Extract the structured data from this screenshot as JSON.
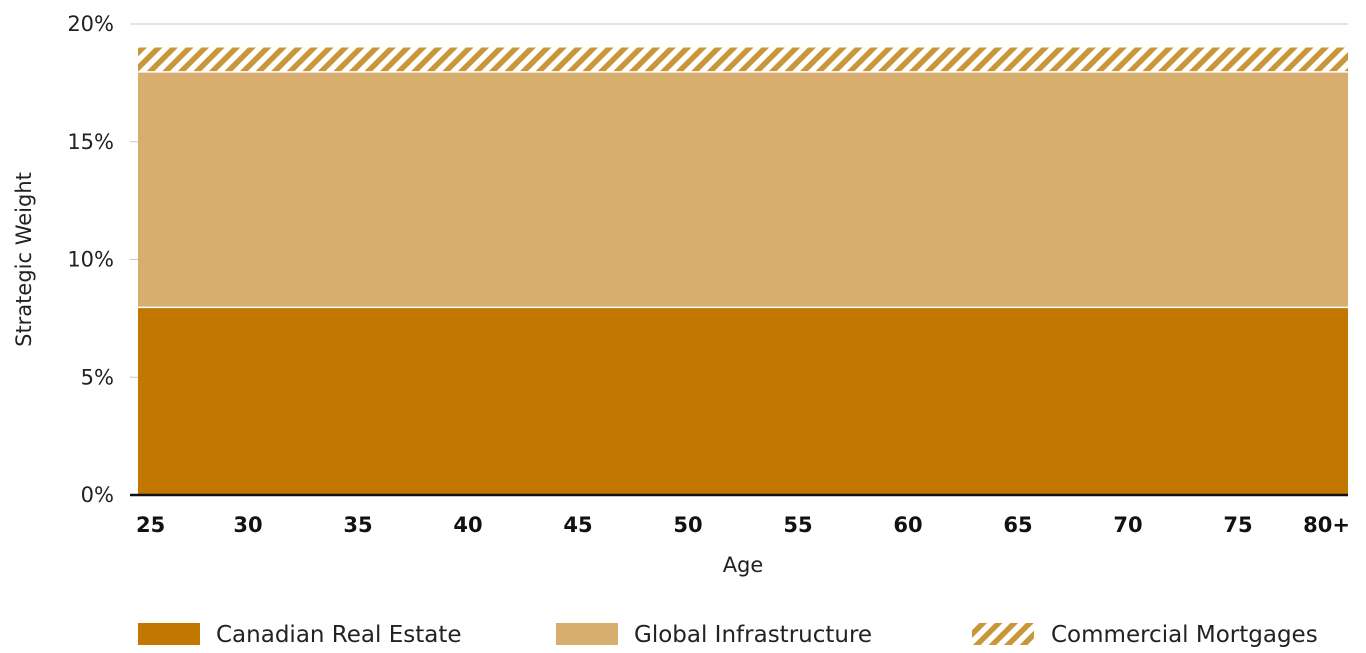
{
  "chart_data": {
    "type": "area",
    "stacked": true,
    "xlabel": "Age",
    "ylabel": "Strategic Weight",
    "x_tick_labels": [
      "25",
      "30",
      "35",
      "40",
      "45",
      "50",
      "55",
      "60",
      "65",
      "70",
      "75",
      "80+"
    ],
    "x": [
      25,
      30,
      35,
      40,
      45,
      50,
      55,
      60,
      65,
      70,
      75,
      80
    ],
    "xlim": [
      25,
      80
    ],
    "ylim": [
      0,
      20
    ],
    "y_ticks": [
      0,
      5,
      10,
      15,
      20
    ],
    "y_tick_labels": [
      "0%",
      "5%",
      "10%",
      "15%",
      "20%"
    ],
    "grid": "horizontal",
    "legend_position": "bottom",
    "series": [
      {
        "name": "Canadian Real Estate",
        "values": [
          8,
          8,
          8,
          8,
          8,
          8,
          8,
          8,
          8,
          8,
          8,
          8
        ],
        "color": "#c27800",
        "pattern": "solid"
      },
      {
        "name": "Global Infrastructure",
        "values": [
          10,
          10,
          10,
          10,
          10,
          10,
          10,
          10,
          10,
          10,
          10,
          10
        ],
        "color": "#d8ae6f",
        "pattern": "solid"
      },
      {
        "name": "Commercial Mortgages",
        "values": [
          1,
          1,
          1,
          1,
          1,
          1,
          1,
          1,
          1,
          1,
          1,
          1
        ],
        "color": "#c9973a",
        "pattern": "diagonal-hatch"
      }
    ]
  }
}
